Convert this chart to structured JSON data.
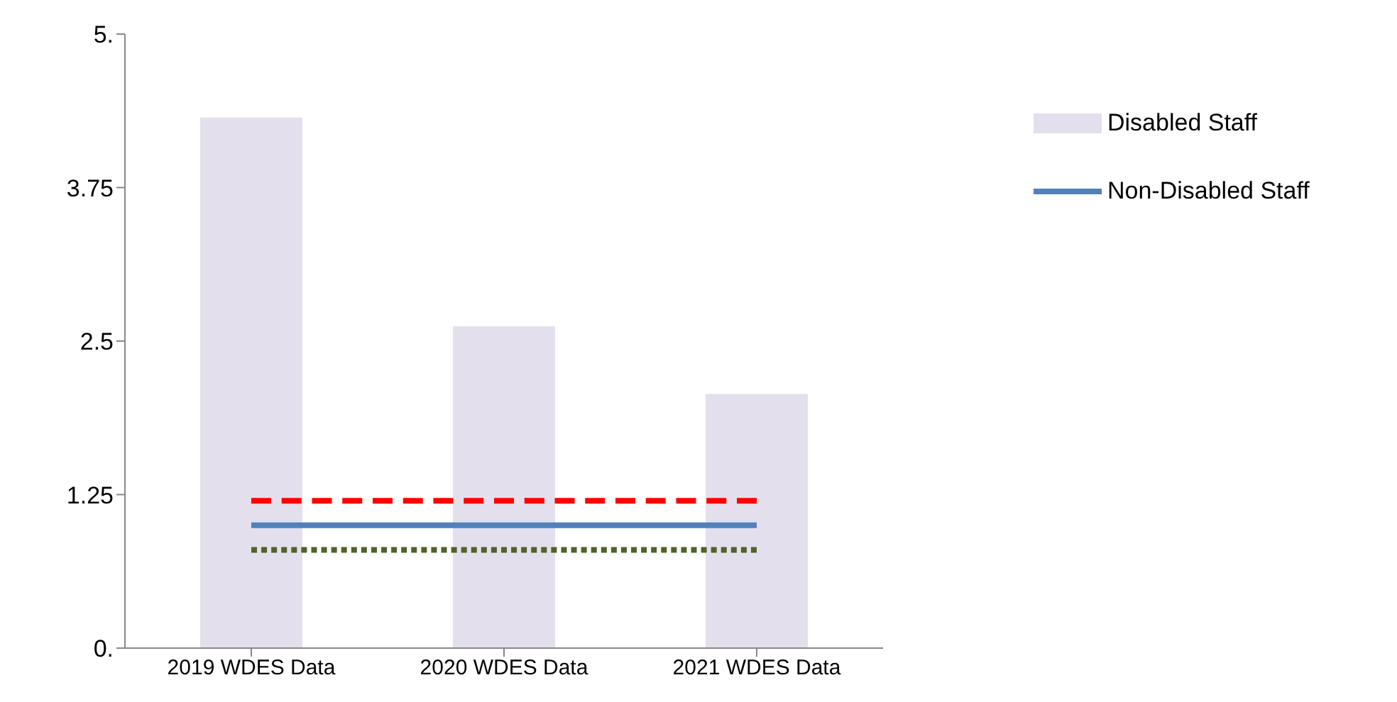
{
  "chart_data": {
    "type": "bar",
    "categories": [
      "2019 WDES Data",
      "2020 WDES Data",
      "2021 WDES Data"
    ],
    "series": [
      {
        "name": "Disabled Staff",
        "color": "#e4dfec",
        "values": [
          4.32,
          2.62,
          2.07
        ]
      },
      {
        "name": "Non-Disabled Staff",
        "type": "line",
        "color": "#4f81bd",
        "line_style": "solid",
        "values": [
          1.0,
          1.0,
          1.0
        ]
      },
      {
        "type": "line",
        "color": "#ff0000",
        "line_style": "dashed",
        "values": [
          1.2,
          1.2,
          1.2
        ]
      },
      {
        "type": "line",
        "color": "#4f6228",
        "line_style": "dotted",
        "values": [
          0.8,
          0.8,
          0.8
        ]
      }
    ],
    "ylim": [
      0,
      5
    ],
    "yticks": [
      {
        "value": 0,
        "label": "0."
      },
      1.25,
      2.5,
      3.75,
      {
        "value": 5,
        "label": "5."
      }
    ],
    "legend": "top right",
    "grid": false,
    "marker": "none"
  }
}
